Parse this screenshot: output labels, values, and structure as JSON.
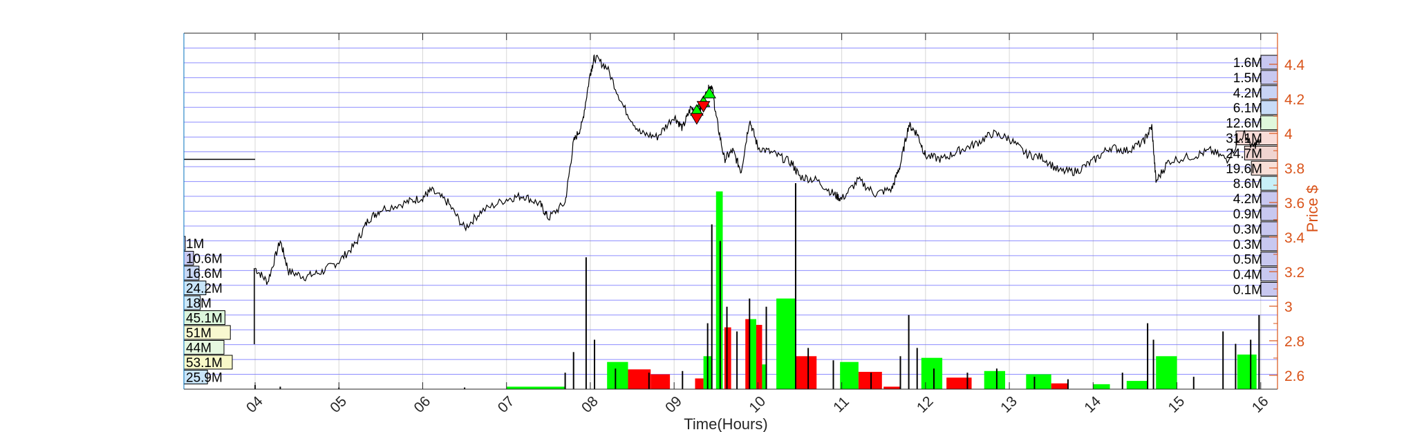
{
  "chart_data": {
    "type": "line",
    "xlabel": "Time(Hours)",
    "ylabel_right": "Price $",
    "x_tick_labels": [
      "04",
      "05",
      "06",
      "07",
      "08",
      "09",
      "10",
      "11",
      "12",
      "13",
      "14",
      "15",
      "16"
    ],
    "x_tick_hours": [
      4,
      5,
      6,
      7,
      8,
      9,
      10,
      11,
      12,
      13,
      14,
      15,
      16
    ],
    "xlim_hours": [
      3.15,
      16.2
    ],
    "right_ylim": [
      2.52,
      4.58
    ],
    "right_ticks": [
      2.6,
      2.8,
      3,
      3.2,
      3.4,
      3.6,
      3.8,
      4,
      4.2,
      4.4
    ],
    "right_tick_labels": [
      "2.6",
      "2.8",
      "3",
      "3.2",
      "3.4",
      "3.6",
      "3.8",
      "4",
      "4.2",
      "4.4"
    ],
    "grid": true,
    "colors": {
      "price_line": "#000000",
      "right_axis": "#d95319",
      "grid": "#0000ff",
      "buy_volume": "#00ff00",
      "sell_volume": "#ff0000",
      "neutral_volume": "#000000"
    },
    "price_series": {
      "name": "Price",
      "points": [
        [
          4.0,
          3.22
        ],
        [
          4.15,
          3.14
        ],
        [
          4.3,
          3.38
        ],
        [
          4.4,
          3.2
        ],
        [
          4.6,
          3.17
        ],
        [
          4.8,
          3.2
        ],
        [
          5.0,
          3.26
        ],
        [
          5.2,
          3.36
        ],
        [
          5.35,
          3.5
        ],
        [
          5.5,
          3.56
        ],
        [
          5.8,
          3.6
        ],
        [
          6.0,
          3.63
        ],
        [
          6.1,
          3.67
        ],
        [
          6.3,
          3.6
        ],
        [
          6.5,
          3.45
        ],
        [
          6.7,
          3.55
        ],
        [
          7.0,
          3.62
        ],
        [
          7.2,
          3.64
        ],
        [
          7.4,
          3.59
        ],
        [
          7.5,
          3.51
        ],
        [
          7.7,
          3.6
        ],
        [
          7.8,
          3.95
        ],
        [
          7.9,
          4.05
        ],
        [
          8.0,
          4.35
        ],
        [
          8.05,
          4.44
        ],
        [
          8.2,
          4.38
        ],
        [
          8.4,
          4.15
        ],
        [
          8.6,
          4.0
        ],
        [
          8.8,
          3.98
        ],
        [
          9.0,
          4.1
        ],
        [
          9.1,
          4.03
        ],
        [
          9.2,
          4.15
        ],
        [
          9.3,
          4.12
        ],
        [
          9.4,
          4.25
        ],
        [
          9.45,
          4.28
        ],
        [
          9.5,
          4.1
        ],
        [
          9.6,
          3.85
        ],
        [
          9.7,
          3.9
        ],
        [
          9.8,
          3.78
        ],
        [
          9.9,
          4.08
        ],
        [
          10.0,
          3.92
        ],
        [
          10.2,
          3.88
        ],
        [
          10.4,
          3.83
        ],
        [
          10.5,
          3.75
        ],
        [
          10.7,
          3.73
        ],
        [
          10.9,
          3.65
        ],
        [
          11.0,
          3.62
        ],
        [
          11.2,
          3.73
        ],
        [
          11.4,
          3.65
        ],
        [
          11.6,
          3.68
        ],
        [
          11.7,
          3.82
        ],
        [
          11.8,
          4.05
        ],
        [
          11.9,
          4.0
        ],
        [
          12.0,
          3.87
        ],
        [
          12.2,
          3.85
        ],
        [
          12.4,
          3.9
        ],
        [
          12.6,
          3.94
        ],
        [
          12.8,
          4.0
        ],
        [
          13.0,
          3.97
        ],
        [
          13.2,
          3.88
        ],
        [
          13.4,
          3.86
        ],
        [
          13.6,
          3.78
        ],
        [
          13.8,
          3.78
        ],
        [
          14.0,
          3.84
        ],
        [
          14.2,
          3.92
        ],
        [
          14.4,
          3.9
        ],
        [
          14.6,
          3.95
        ],
        [
          14.7,
          4.04
        ],
        [
          14.75,
          3.72
        ],
        [
          14.9,
          3.84
        ],
        [
          15.2,
          3.87
        ],
        [
          15.4,
          3.9
        ],
        [
          15.6,
          3.85
        ],
        [
          15.8,
          4.0
        ],
        [
          15.9,
          3.92
        ],
        [
          16.0,
          3.96
        ]
      ]
    },
    "markers": [
      {
        "type": "buy",
        "x": 9.27,
        "y": 4.13
      },
      {
        "type": "buy",
        "x": 9.35,
        "y": 4.18
      },
      {
        "type": "buy",
        "x": 9.42,
        "y": 4.23
      },
      {
        "type": "sell",
        "x": 9.27,
        "y": 4.09
      },
      {
        "type": "sell",
        "x": 9.35,
        "y": 4.16
      }
    ],
    "volume_profile_left": {
      "labels": [
        "1M",
        "10.6M",
        "16.6M",
        "24.2M",
        "18M",
        "45.1M",
        "51M",
        "44M",
        "53.1M",
        "25.9M"
      ],
      "values": [
        1,
        10.6,
        16.6,
        24.2,
        18,
        45.1,
        51,
        44,
        53.1,
        25.9
      ]
    },
    "volume_profile_right": {
      "labels": [
        "1.6M",
        "1.5M",
        "4.2M",
        "6.1M",
        "12.6M",
        "31.1M",
        "24.7M",
        "19.6M",
        "8.6M",
        "4.2M",
        "0.9M",
        "0.3M",
        "0.3M",
        "0.5M",
        "0.4M",
        "0.1M"
      ],
      "values": [
        1.6,
        1.5,
        4.2,
        6.1,
        12.6,
        31.1,
        24.7,
        19.6,
        8.6,
        4.2,
        0.9,
        0.3,
        0.3,
        0.5,
        0.4,
        0.1
      ]
    },
    "volume_blocks": [
      {
        "type": "buy",
        "x0": 7.0,
        "x1": 7.7,
        "value": 0.3
      },
      {
        "type": "buy",
        "x0": 8.2,
        "x1": 8.45,
        "value": 3.3
      },
      {
        "type": "sell",
        "x0": 8.45,
        "x1": 8.72,
        "value": 2.4
      },
      {
        "type": "sell",
        "x0": 8.72,
        "x1": 8.95,
        "value": 1.8
      },
      {
        "type": "sell",
        "x0": 9.25,
        "x1": 9.35,
        "value": 1.3
      },
      {
        "type": "buy",
        "x0": 9.35,
        "x1": 9.45,
        "value": 4.0
      },
      {
        "type": "buy",
        "x0": 9.5,
        "x1": 9.58,
        "value": 24.0
      },
      {
        "type": "sell",
        "x0": 9.6,
        "x1": 9.68,
        "value": 7.5
      },
      {
        "type": "sell",
        "x0": 9.85,
        "x1": 9.9,
        "value": 8.5
      },
      {
        "type": "buy",
        "x0": 9.9,
        "x1": 9.98,
        "value": 8.5
      },
      {
        "type": "sell",
        "x0": 9.98,
        "x1": 10.05,
        "value": 7.8
      },
      {
        "type": "buy",
        "x0": 10.05,
        "x1": 10.1,
        "value": 3.0
      },
      {
        "type": "buy",
        "x0": 10.22,
        "x1": 10.45,
        "value": 11.0
      },
      {
        "type": "sell",
        "x0": 10.45,
        "x1": 10.7,
        "value": 4.0
      },
      {
        "type": "buy",
        "x0": 10.98,
        "x1": 11.2,
        "value": 3.3
      },
      {
        "type": "sell",
        "x0": 11.2,
        "x1": 11.48,
        "value": 2.1
      },
      {
        "type": "sell",
        "x0": 11.5,
        "x1": 11.7,
        "value": 0.3
      },
      {
        "type": "buy",
        "x0": 11.95,
        "x1": 12.2,
        "value": 3.8
      },
      {
        "type": "sell",
        "x0": 12.25,
        "x1": 12.55,
        "value": 1.4
      },
      {
        "type": "buy",
        "x0": 12.7,
        "x1": 12.95,
        "value": 2.2
      },
      {
        "type": "buy",
        "x0": 13.2,
        "x1": 13.5,
        "value": 1.8
      },
      {
        "type": "sell",
        "x0": 13.5,
        "x1": 13.7,
        "value": 0.7
      },
      {
        "type": "buy",
        "x0": 14.0,
        "x1": 14.2,
        "value": 0.6
      },
      {
        "type": "buy",
        "x0": 14.4,
        "x1": 14.65,
        "value": 1.0
      },
      {
        "type": "buy",
        "x0": 14.75,
        "x1": 15.0,
        "value": 4.0
      },
      {
        "type": "buy",
        "x0": 15.72,
        "x1": 15.95,
        "value": 4.2
      }
    ],
    "volume_spikes": [
      {
        "x": 4.0,
        "value": 0.5
      },
      {
        "x": 4.3,
        "value": 0.3
      },
      {
        "x": 5.0,
        "value": 0.2
      },
      {
        "x": 6.5,
        "value": 0.2
      },
      {
        "x": 7.7,
        "value": 2.0
      },
      {
        "x": 7.8,
        "value": 4.5
      },
      {
        "x": 7.95,
        "value": 16.0
      },
      {
        "x": 8.05,
        "value": 6.0
      },
      {
        "x": 8.3,
        "value": 2.5
      },
      {
        "x": 8.7,
        "value": 2.0
      },
      {
        "x": 9.1,
        "value": 2.2
      },
      {
        "x": 9.4,
        "value": 8.0
      },
      {
        "x": 9.45,
        "value": 20.0
      },
      {
        "x": 9.55,
        "value": 18.0
      },
      {
        "x": 9.63,
        "value": 10.0
      },
      {
        "x": 9.75,
        "value": 7.0
      },
      {
        "x": 9.9,
        "value": 11.0
      },
      {
        "x": 10.1,
        "value": 10.0
      },
      {
        "x": 10.45,
        "value": 25.0
      },
      {
        "x": 10.6,
        "value": 5.0
      },
      {
        "x": 10.9,
        "value": 3.5
      },
      {
        "x": 11.35,
        "value": 2.0
      },
      {
        "x": 11.7,
        "value": 4.0
      },
      {
        "x": 11.8,
        "value": 9.0
      },
      {
        "x": 11.9,
        "value": 5.0
      },
      {
        "x": 12.1,
        "value": 2.5
      },
      {
        "x": 12.5,
        "value": 2.0
      },
      {
        "x": 12.85,
        "value": 2.5
      },
      {
        "x": 13.3,
        "value": 1.5
      },
      {
        "x": 13.7,
        "value": 1.2
      },
      {
        "x": 14.35,
        "value": 2.0
      },
      {
        "x": 14.65,
        "value": 8.0
      },
      {
        "x": 14.72,
        "value": 6.0
      },
      {
        "x": 15.2,
        "value": 1.5
      },
      {
        "x": 15.55,
        "value": 7.0
      },
      {
        "x": 15.7,
        "value": 5.5
      },
      {
        "x": 15.88,
        "value": 6.0
      },
      {
        "x": 15.98,
        "value": 9.0
      }
    ],
    "volume_ylim": [
      0,
      25
    ]
  }
}
